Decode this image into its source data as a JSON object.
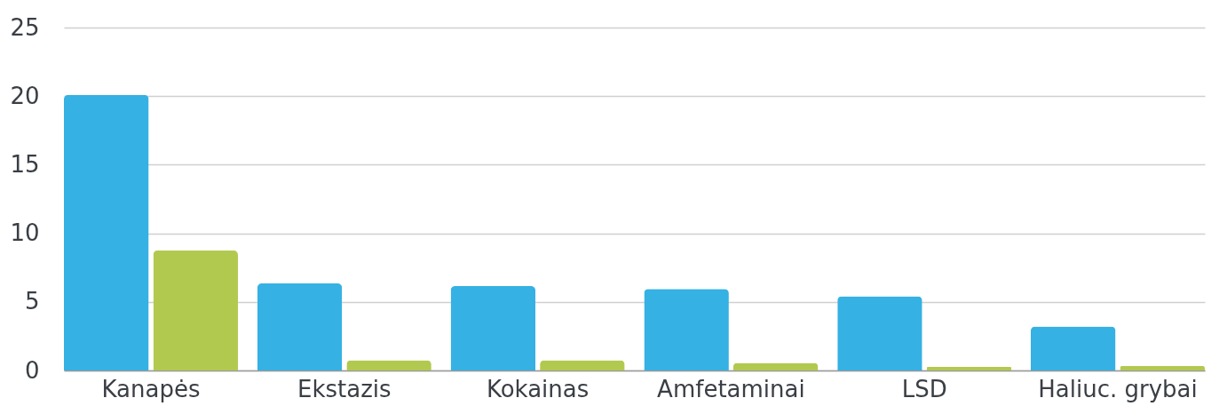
{
  "chart_data": {
    "type": "bar",
    "categories": [
      "Kanapės",
      "Ekstazis",
      "Kokainas",
      "Amfetaminai",
      "LSD",
      "Haliuc. grybai"
    ],
    "series": [
      {
        "color": "#35b1e3",
        "values": [
          20.1,
          6.35,
          6.15,
          5.95,
          5.4,
          3.2
        ]
      },
      {
        "color": "#b2c94f",
        "values": [
          8.75,
          0.75,
          0.75,
          0.55,
          0.27,
          0.33
        ]
      }
    ],
    "ylim": [
      0,
      25
    ],
    "yticks": [
      0,
      5,
      10,
      15,
      20,
      25
    ],
    "grid": "y",
    "legend": false
  }
}
